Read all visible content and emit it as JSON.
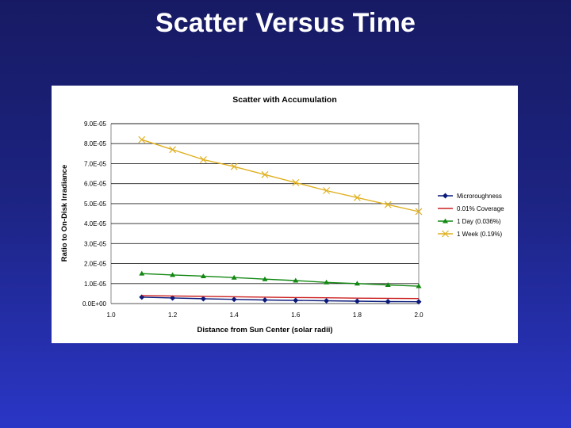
{
  "slide": {
    "title": "Scatter Versus Time"
  },
  "chart_data": {
    "type": "line",
    "title": "Scatter with Accumulation",
    "xlabel": "Distance from Sun Center (solar radii)",
    "ylabel": "Ratio to On-Disk Irradiance",
    "xlim": [
      1.0,
      2.0
    ],
    "ylim": [
      0,
      9e-05
    ],
    "x_tick_labels": [
      "1.0",
      "1.2",
      "1.4",
      "1.6",
      "1.8",
      "2.0"
    ],
    "y_tick_labels": [
      "0.0E+00",
      "1.0E-05",
      "2.0E-05",
      "3.0E-05",
      "4.0E-05",
      "5.0E-05",
      "6.0E-05",
      "7.0E-05",
      "8.0E-05",
      "9.0E-05"
    ],
    "grid": "horizontal",
    "legend": "right",
    "x": [
      1.1,
      1.2,
      1.3,
      1.4,
      1.5,
      1.6,
      1.7,
      1.8,
      1.9,
      2.0
    ],
    "series": [
      {
        "name": "Microroughness",
        "color": "#0a1a7a",
        "marker": "diamond",
        "values": [
          3.2e-06,
          2.8e-06,
          2.4e-06,
          2.1e-06,
          1.8e-06,
          1.6e-06,
          1.4e-06,
          1.2e-06,
          1e-06,
          9e-07
        ]
      },
      {
        "name": "0.01% Coverage",
        "color": "#cc2020",
        "marker": "none",
        "values": [
          4e-06,
          3.8e-06,
          3.6e-06,
          3.4e-06,
          3.2e-06,
          3e-06,
          2.9e-06,
          2.7e-06,
          2.6e-06,
          2.5e-06
        ]
      },
      {
        "name": "1 Day (0.036%)",
        "color": "#118811",
        "marker": "triangle",
        "values": [
          1.5e-05,
          1.43e-05,
          1.37e-05,
          1.3e-05,
          1.22e-05,
          1.15e-05,
          1.06e-05,
          1e-05,
          9.3e-06,
          8.7e-06
        ]
      },
      {
        "name": "1 Week (0.19%)",
        "color": "#e0b020",
        "marker": "x",
        "values": [
          8.2e-05,
          7.7e-05,
          7.2e-05,
          6.85e-05,
          6.45e-05,
          6.05e-05,
          5.65e-05,
          5.3e-05,
          4.95e-05,
          4.6e-05
        ]
      }
    ]
  }
}
